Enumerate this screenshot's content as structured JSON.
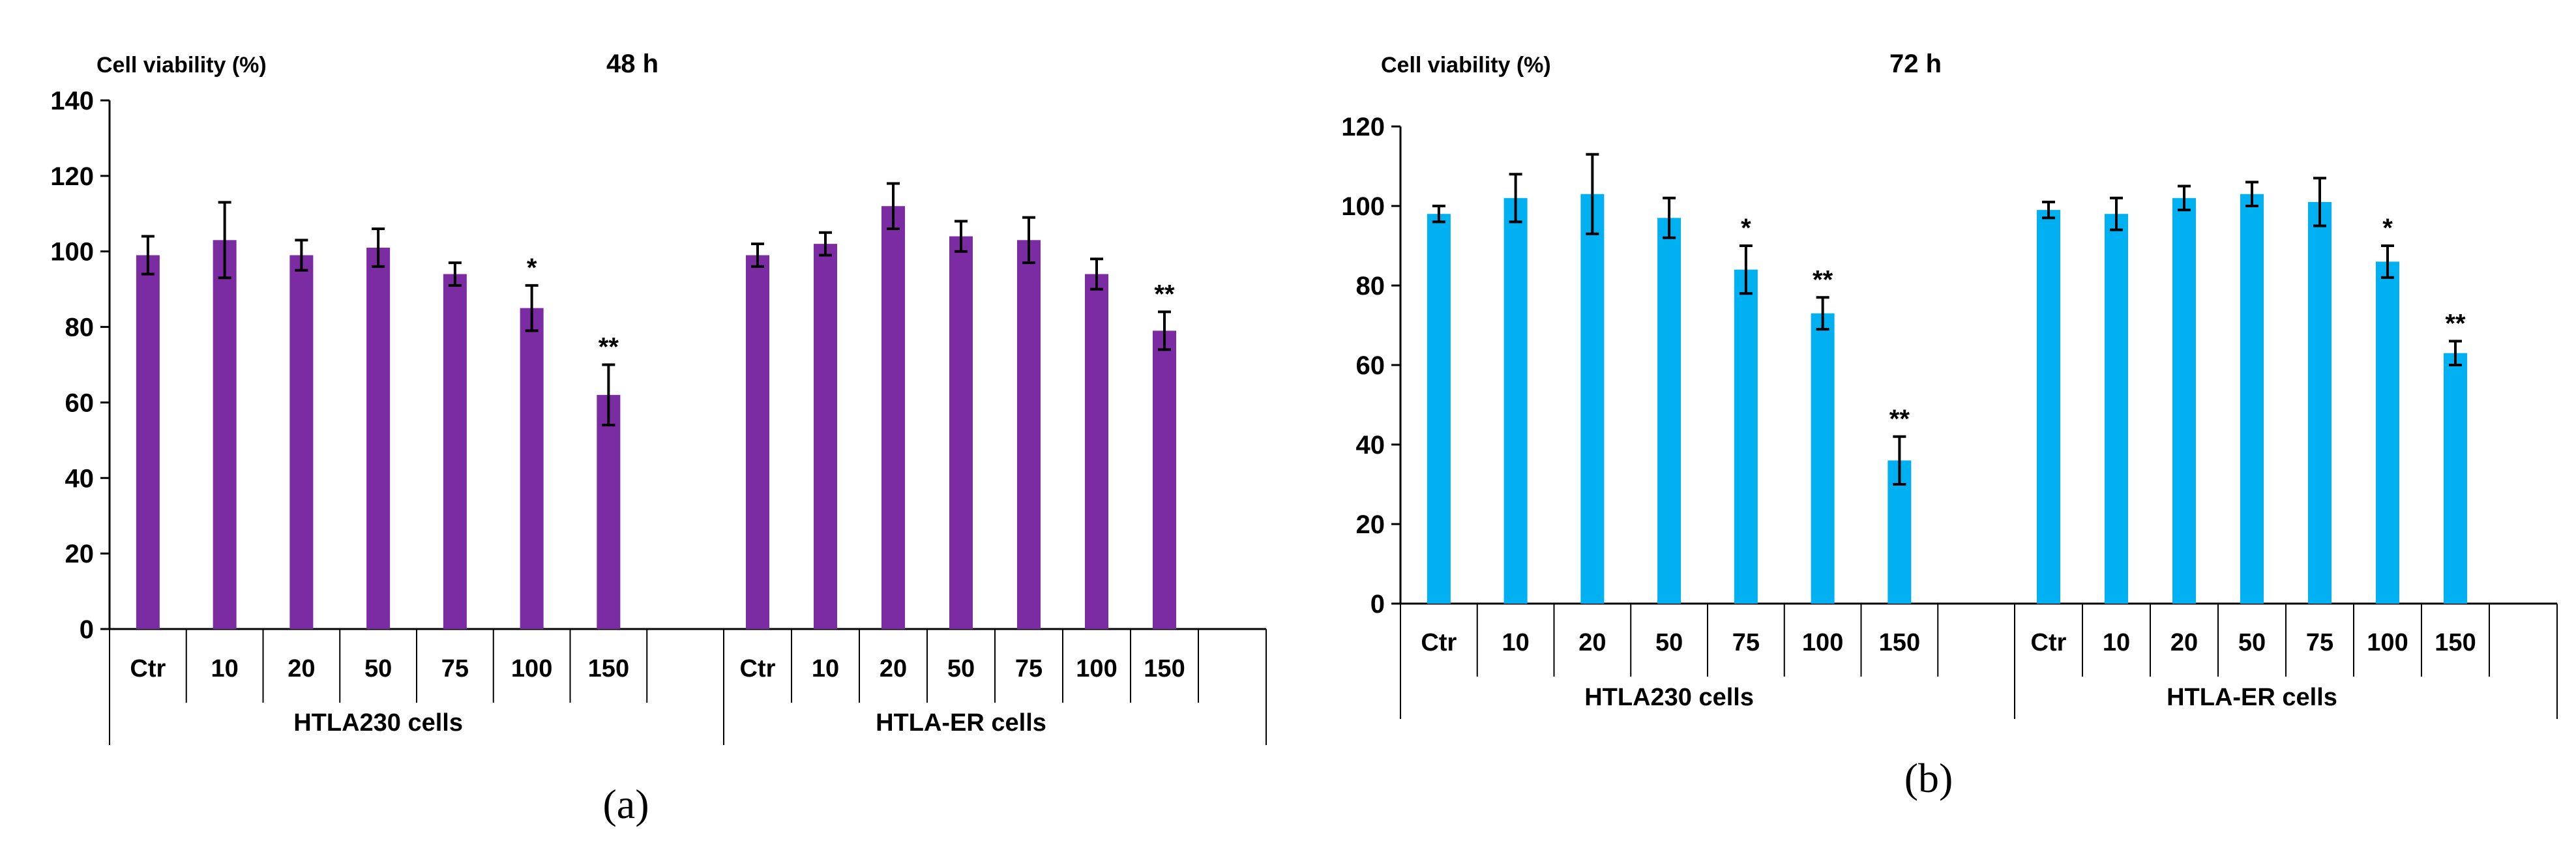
{
  "chart_data": [
    {
      "type": "bar",
      "panel_label": "(a)",
      "title": "48 h",
      "ylabel": "Cell viability (%)",
      "ylim": [
        0,
        140
      ],
      "yticks": [
        0,
        20,
        40,
        60,
        80,
        100,
        120,
        140
      ],
      "bar_color": "#7B2CA3",
      "groups": [
        {
          "label": "HTLA230 cells",
          "categories": [
            "Ctr",
            "10",
            "20",
            "50",
            "75",
            "100",
            "150"
          ],
          "values": [
            99,
            103,
            99,
            101,
            94,
            85,
            62
          ],
          "errors": [
            5,
            10,
            4,
            5,
            3,
            6,
            8
          ],
          "significance": [
            "",
            "",
            "",
            "",
            "",
            "*",
            "**"
          ]
        },
        {
          "label": "HTLA-ER cells",
          "categories": [
            "Ctr",
            "10",
            "20",
            "50",
            "75",
            "100",
            "150"
          ],
          "values": [
            99,
            102,
            112,
            104,
            103,
            94,
            79
          ],
          "errors": [
            3,
            3,
            6,
            4,
            6,
            4,
            5
          ],
          "significance": [
            "",
            "",
            "",
            "",
            "",
            "",
            "**"
          ]
        }
      ]
    },
    {
      "type": "bar",
      "panel_label": "(b)",
      "title": "72 h",
      "ylabel": "Cell viability (%)",
      "ylim": [
        0,
        120
      ],
      "yticks": [
        0,
        20,
        40,
        60,
        80,
        100,
        120
      ],
      "bar_color": "#00B0F0",
      "groups": [
        {
          "label": "HTLA230 cells",
          "categories": [
            "Ctr",
            "10",
            "20",
            "50",
            "75",
            "100",
            "150"
          ],
          "values": [
            98,
            102,
            103,
            97,
            84,
            73,
            36
          ],
          "errors": [
            2,
            6,
            10,
            5,
            6,
            4,
            6
          ],
          "significance": [
            "",
            "",
            "",
            "",
            "*",
            "**",
            "**"
          ]
        },
        {
          "label": "HTLA-ER cells",
          "categories": [
            "Ctr",
            "10",
            "20",
            "50",
            "75",
            "100",
            "150"
          ],
          "values": [
            99,
            98,
            102,
            103,
            101,
            86,
            63
          ],
          "errors": [
            2,
            4,
            3,
            3,
            6,
            4,
            3
          ],
          "significance": [
            "",
            "",
            "",
            "",
            "",
            "*",
            "**"
          ]
        }
      ]
    }
  ]
}
